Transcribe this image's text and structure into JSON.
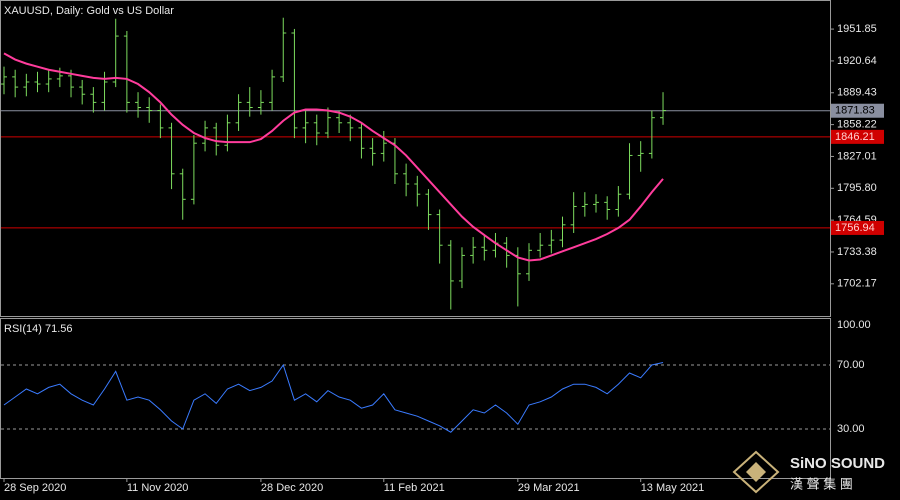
{
  "chart_data": [
    {
      "type": "ohlc",
      "title": "XAUUSD, Daily:  Gold vs US Dollar",
      "color": "#7ddc5e",
      "categories": [
        "28 Sep 2020",
        null,
        null,
        null,
        null,
        null,
        null,
        null,
        null,
        null,
        null,
        "11 Nov 2020",
        null,
        null,
        null,
        null,
        null,
        null,
        null,
        null,
        null,
        null,
        null,
        "28 Dec 2020",
        null,
        null,
        null,
        null,
        null,
        null,
        null,
        null,
        null,
        null,
        "11 Feb 2021",
        null,
        null,
        null,
        null,
        null,
        null,
        null,
        null,
        null,
        null,
        null,
        "29 Mar 2021",
        null,
        null,
        null,
        null,
        null,
        null,
        null,
        null,
        null,
        null,
        "13 May 2021",
        null,
        null
      ],
      "open": [
        1898,
        1905,
        1895,
        1900,
        1898,
        1903,
        1906,
        1895,
        1888,
        1880,
        1900,
        1945,
        1880,
        1875,
        1872,
        1855,
        1810,
        1785,
        1840,
        1855,
        1838,
        1860,
        1880,
        1875,
        1880,
        1905,
        1948,
        1855,
        1860,
        1850,
        1865,
        1860,
        1855,
        1835,
        1830,
        1840,
        1810,
        1800,
        1790,
        1770,
        1740,
        1705,
        1730,
        1738,
        1735,
        1742,
        1730,
        1712,
        1735,
        1740,
        1745,
        1760,
        1778,
        1780,
        1782,
        1775,
        1790,
        1828,
        1830,
        1865
      ],
      "high": [
        1915,
        1912,
        1908,
        1910,
        1912,
        1914,
        1912,
        1902,
        1895,
        1910,
        1962,
        1950,
        1890,
        1885,
        1878,
        1860,
        1815,
        1848,
        1862,
        1860,
        1868,
        1888,
        1895,
        1892,
        1912,
        1963,
        1952,
        1872,
        1868,
        1875,
        1872,
        1868,
        1860,
        1845,
        1852,
        1845,
        1820,
        1808,
        1795,
        1775,
        1745,
        1738,
        1748,
        1750,
        1752,
        1748,
        1738,
        1742,
        1752,
        1755,
        1768,
        1792,
        1792,
        1790,
        1788,
        1798,
        1840,
        1842,
        1872,
        1890
      ],
      "low": [
        1888,
        1885,
        1886,
        1890,
        1890,
        1895,
        1885,
        1878,
        1870,
        1872,
        1895,
        1870,
        1865,
        1860,
        1845,
        1795,
        1765,
        1780,
        1832,
        1828,
        1832,
        1852,
        1866,
        1868,
        1872,
        1900,
        1845,
        1840,
        1838,
        1845,
        1850,
        1842,
        1825,
        1818,
        1822,
        1800,
        1788,
        1778,
        1755,
        1722,
        1677,
        1698,
        1722,
        1725,
        1728,
        1718,
        1680,
        1705,
        1728,
        1732,
        1738,
        1752,
        1768,
        1772,
        1765,
        1768,
        1785,
        1812,
        1825,
        1858
      ],
      "close": [
        1905,
        1895,
        1900,
        1898,
        1903,
        1906,
        1895,
        1888,
        1880,
        1900,
        1945,
        1880,
        1875,
        1872,
        1855,
        1810,
        1785,
        1840,
        1855,
        1838,
        1860,
        1880,
        1875,
        1880,
        1905,
        1948,
        1855,
        1860,
        1850,
        1865,
        1860,
        1855,
        1835,
        1830,
        1840,
        1810,
        1800,
        1790,
        1770,
        1740,
        1705,
        1730,
        1738,
        1735,
        1742,
        1730,
        1712,
        1735,
        1740,
        1745,
        1760,
        1778,
        1780,
        1782,
        1775,
        1790,
        1828,
        1830,
        1865,
        1872
      ],
      "ma": {
        "color": "#ff3c9c",
        "values": [
          1928,
          1922,
          1918,
          1915,
          1912,
          1910,
          1908,
          1906,
          1904,
          1903,
          1904,
          1903,
          1898,
          1890,
          1880,
          1868,
          1858,
          1850,
          1845,
          1842,
          1841,
          1841,
          1841,
          1844,
          1852,
          1862,
          1870,
          1873,
          1873,
          1872,
          1870,
          1866,
          1860,
          1852,
          1845,
          1838,
          1828,
          1816,
          1804,
          1792,
          1780,
          1768,
          1758,
          1750,
          1742,
          1735,
          1728,
          1725,
          1726,
          1730,
          1734,
          1738,
          1742,
          1746,
          1751,
          1757,
          1765,
          1778,
          1792,
          1805
        ]
      },
      "levels": [
        {
          "value": 1871.83,
          "color": "#8a8fa0"
        },
        {
          "value": 1846.21,
          "color": "#d00000"
        },
        {
          "value": 1756.94,
          "color": "#d00000"
        }
      ],
      "ylim": [
        1671.6,
        1978.4
      ],
      "yticks": [
        1951.85,
        1920.64,
        1889.43,
        1858.22,
        1827.01,
        {
          "value": 1795.8,
          "label": "1795.80"
        },
        1764.59,
        1733.38,
        1702.17
      ]
    },
    {
      "type": "line",
      "title": "RSI(14) 71.56",
      "color": "#3a7bff",
      "values": [
        45,
        50,
        55,
        52,
        56,
        58,
        52,
        48,
        45,
        55,
        66,
        48,
        50,
        48,
        42,
        35,
        30,
        48,
        52,
        46,
        55,
        58,
        54,
        56,
        60,
        70,
        48,
        52,
        47,
        54,
        50,
        48,
        43,
        45,
        52,
        42,
        40,
        38,
        35,
        32,
        28,
        35,
        42,
        40,
        45,
        40,
        33,
        45,
        47,
        50,
        55,
        58,
        58,
        56,
        52,
        58,
        65,
        62,
        70,
        71.56
      ],
      "ylim": [
        0,
        100
      ],
      "yticks": [
        {
          "value": 100,
          "label": "100.00"
        },
        {
          "value": 70,
          "label": "70.00"
        },
        {
          "value": 30,
          "label": "30.00"
        }
      ]
    }
  ],
  "logo": {
    "name": "SiNO SOUND",
    "subtitle": "漢 聲 集 團"
  }
}
